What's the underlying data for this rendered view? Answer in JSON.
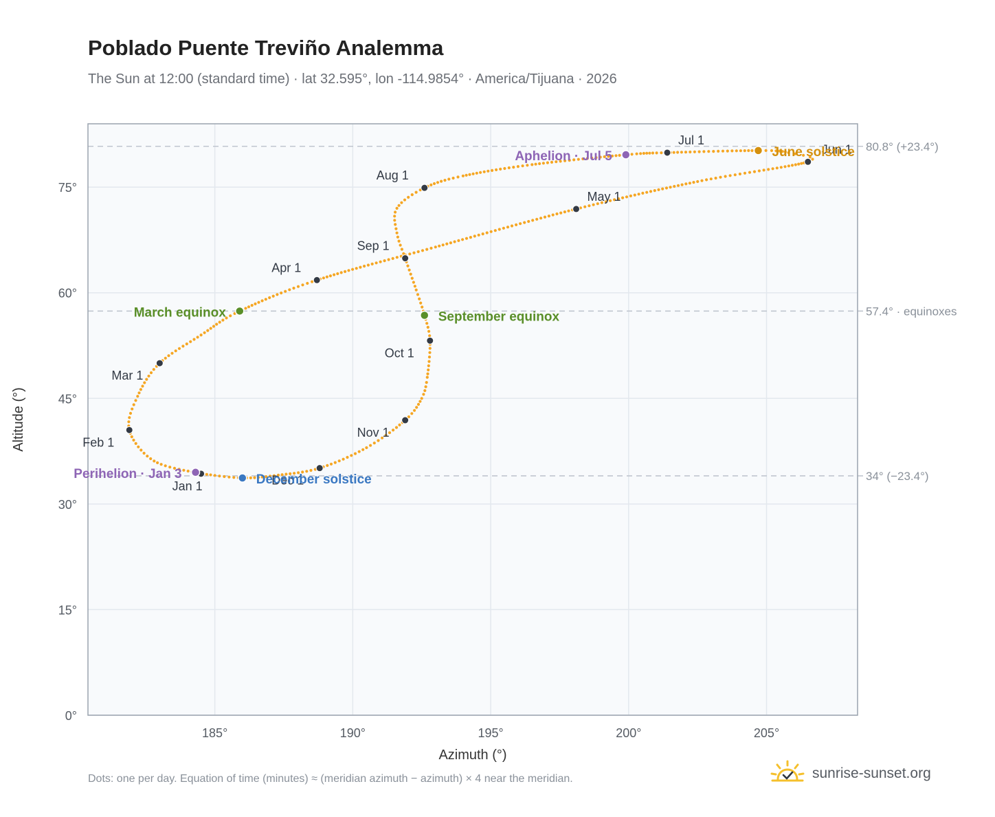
{
  "header": {
    "title": "Poblado Puente Treviño Analemma",
    "subtitle": "The Sun at 12:00 (standard time) · lat 32.595°, lon -114.9854° · America/Tijuana · 2026"
  },
  "footer": {
    "note": "Dots: one per day. Equation of time (minutes) ≈ (meridian azimuth − azimuth) × 4 near the meridian.",
    "brand": "sunrise-sunset.org"
  },
  "colors": {
    "curve": "#f5a623",
    "month_marker": "#333a45",
    "equinox": "#5a8f29",
    "june_solstice": "#d4900e",
    "december_solstice": "#3a78c2",
    "apsis": "#8e65b5",
    "plot_bg": "#f8fafc",
    "grid": "#e3e8ee",
    "reference_line": "#c0c6cf",
    "brand_icon": "#f5c02c"
  },
  "chart_data": {
    "type": "scatter",
    "xlabel": "Azimuth (°)",
    "ylabel": "Altitude (°)",
    "xlim": [
      180.4,
      208.3
    ],
    "ylim": [
      0,
      84
    ],
    "x_ticks": [
      185,
      190,
      195,
      200,
      205
    ],
    "x_tick_labels": [
      "185°",
      "190°",
      "195°",
      "200°",
      "205°"
    ],
    "y_ticks": [
      0,
      15,
      30,
      45,
      60,
      75
    ],
    "y_tick_labels": [
      "0°",
      "15°",
      "30°",
      "45°",
      "60°",
      "75°"
    ],
    "grid": true,
    "curve_points": [
      [
        184.5,
        34.3
      ],
      [
        182.8,
        36.1
      ],
      [
        181.9,
        40.5
      ],
      [
        182.2,
        45.3
      ],
      [
        183.0,
        50.0
      ],
      [
        184.5,
        54.0
      ],
      [
        185.9,
        57.4
      ],
      [
        188.7,
        61.8
      ],
      [
        193.0,
        66.5
      ],
      [
        198.1,
        71.9
      ],
      [
        202.5,
        75.8
      ],
      [
        206.5,
        78.6
      ],
      [
        205.8,
        79.9
      ],
      [
        204.7,
        80.2
      ],
      [
        201.4,
        79.9
      ],
      [
        199.9,
        79.6
      ],
      [
        196.5,
        78.2
      ],
      [
        194.0,
        76.6
      ],
      [
        192.6,
        74.9
      ],
      [
        191.6,
        72.0
      ],
      [
        191.6,
        68.5
      ],
      [
        191.9,
        64.9
      ],
      [
        192.3,
        60.4
      ],
      [
        192.6,
        56.8
      ],
      [
        192.8,
        53.2
      ],
      [
        192.7,
        48.0
      ],
      [
        192.5,
        45.0
      ],
      [
        191.9,
        41.9
      ],
      [
        190.5,
        38.0
      ],
      [
        188.8,
        35.1
      ],
      [
        187.3,
        34.1
      ],
      [
        186.0,
        33.7
      ],
      [
        184.5,
        34.3
      ]
    ],
    "month_markers": [
      {
        "label": "Jan 1",
        "az": 184.5,
        "alt": 34.3
      },
      {
        "label": "Feb 1",
        "az": 181.9,
        "alt": 40.5
      },
      {
        "label": "Mar 1",
        "az": 183.0,
        "alt": 50.0
      },
      {
        "label": "Apr 1",
        "az": 188.7,
        "alt": 61.8
      },
      {
        "label": "May 1",
        "az": 198.1,
        "alt": 71.9
      },
      {
        "label": "Jun 1",
        "az": 206.5,
        "alt": 78.6
      },
      {
        "label": "Jul 1",
        "az": 201.4,
        "alt": 79.9
      },
      {
        "label": "Aug 1",
        "az": 192.6,
        "alt": 74.9
      },
      {
        "label": "Sep 1",
        "az": 191.9,
        "alt": 64.9
      },
      {
        "label": "Oct 1",
        "az": 192.8,
        "alt": 53.2
      },
      {
        "label": "Nov 1",
        "az": 191.9,
        "alt": 41.9
      },
      {
        "label": "Dec 1",
        "az": 188.8,
        "alt": 35.1
      }
    ],
    "events": [
      {
        "label": "March equinox",
        "az": 185.9,
        "alt": 57.4,
        "kind": "equinox"
      },
      {
        "label": "September equinox",
        "az": 192.6,
        "alt": 56.8,
        "kind": "equinox"
      },
      {
        "label": "June solstice",
        "az": 204.7,
        "alt": 80.2,
        "kind": "june_solstice"
      },
      {
        "label": "December solstice",
        "az": 186.0,
        "alt": 33.7,
        "kind": "december_solstice"
      },
      {
        "label": "Perihelion · Jan 3",
        "az": 184.3,
        "alt": 34.5,
        "kind": "apsis"
      },
      {
        "label": "Aphelion · Jul 5",
        "az": 199.9,
        "alt": 79.6,
        "kind": "apsis"
      }
    ],
    "reference_lines": [
      {
        "alt": 80.8,
        "label": "80.8° (+23.4°)"
      },
      {
        "alt": 57.4,
        "label": "57.4° · equinoxes"
      },
      {
        "alt": 34.0,
        "label": "34° (−23.4°)"
      }
    ]
  }
}
